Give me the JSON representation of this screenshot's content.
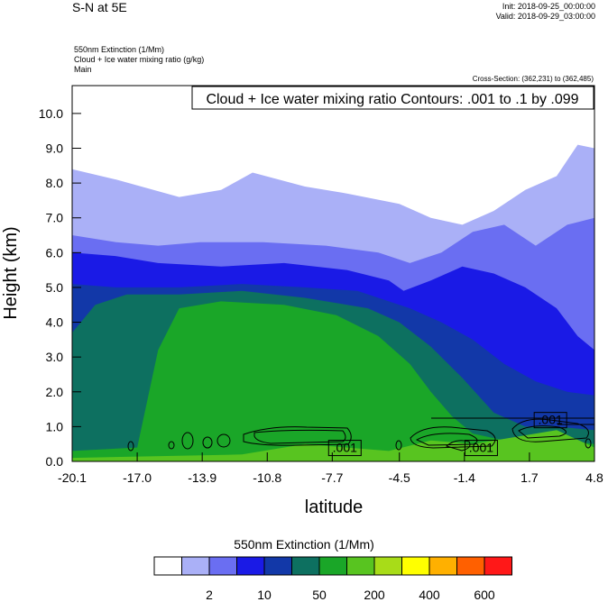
{
  "header": {
    "title": "S-N at 5E",
    "init": "Init: 2018-09-25_00:00:00",
    "valid": "Valid: 2018-09-29_03:00:00",
    "fields": [
      "550nm Extinction   (1/Mm)",
      "Cloud + Ice water mixing ratio   (g/kg)",
      "Main"
    ],
    "cross_section": "Cross-Section: (362,231) to (362,485)"
  },
  "chart_data": {
    "type": "heatmap",
    "title": "S-N at 5E",
    "xlabel": "latitude",
    "ylabel": "Height (km)",
    "xlim": [
      -20.1,
      4.8
    ],
    "ylim": [
      0.0,
      10.8
    ],
    "x_ticks": [
      -20.1,
      -17.0,
      -13.9,
      -10.8,
      -7.7,
      -4.5,
      -1.4,
      1.7,
      4.8
    ],
    "x_tick_labels": [
      "-20.1",
      "-17.0",
      "-13.9",
      "-10.8",
      "-7.7",
      "-4.5",
      "-1.4",
      "1.7",
      "4.8"
    ],
    "y_ticks": [
      0.0,
      1.0,
      2.0,
      3.0,
      4.0,
      5.0,
      6.0,
      7.0,
      8.0,
      9.0,
      10.0
    ],
    "y_tick_labels": [
      "0.0",
      "1.0",
      "2.0",
      "3.0",
      "4.0",
      "5.0",
      "6.0",
      "7.0",
      "8.0",
      "9.0",
      "10.0"
    ],
    "contour_info": "Cloud + Ice water mixing ratio Contours: .001 to .1 by .099",
    "contour_labels": [
      {
        "text": ".001",
        "lat": -7.1,
        "h": 0.4
      },
      {
        "text": ".001",
        "lat": -0.6,
        "h": 0.4
      },
      {
        "text": ".001",
        "lat": 2.7,
        "h": 1.2
      }
    ],
    "colorbar": {
      "title": "550nm Extinction  (1/Mm)",
      "colors": [
        "#ffffff",
        "#aab0f7",
        "#6a6ef2",
        "#1a1ae6",
        "#1238a8",
        "#0d7060",
        "#1aa628",
        "#58c420",
        "#a8dc18",
        "#ffff00",
        "#ffb000",
        "#ff6000",
        "#ff1818"
      ],
      "tick_labels": [
        "2",
        "10",
        "50",
        "200",
        "400",
        "600"
      ],
      "tick_label_boundaries": [
        2,
        4,
        6,
        8,
        10,
        12
      ]
    },
    "bands": [
      {
        "level": 1,
        "color": "#aab0f7",
        "top": [
          [
            -20.1,
            8.4
          ],
          [
            -18.0,
            8.1
          ],
          [
            -15.0,
            7.6
          ],
          [
            -13.0,
            7.8
          ],
          [
            -11.5,
            8.3
          ],
          [
            -9.0,
            7.9
          ],
          [
            -7.0,
            7.7
          ],
          [
            -4.5,
            7.4
          ],
          [
            -3.0,
            7.0
          ],
          [
            -1.5,
            6.8
          ],
          [
            0.0,
            7.2
          ],
          [
            1.5,
            7.8
          ],
          [
            3.0,
            8.2
          ],
          [
            4.0,
            9.1
          ],
          [
            4.8,
            9.0
          ]
        ]
      },
      {
        "level": 2,
        "color": "#6a6ef2",
        "top": [
          [
            -20.1,
            6.5
          ],
          [
            -18.0,
            6.3
          ],
          [
            -16.0,
            6.2
          ],
          [
            -14.0,
            6.3
          ],
          [
            -11.0,
            6.3
          ],
          [
            -8.0,
            6.2
          ],
          [
            -5.5,
            6.0
          ],
          [
            -4.0,
            5.7
          ],
          [
            -2.5,
            6.0
          ],
          [
            -1.0,
            6.6
          ],
          [
            0.5,
            6.8
          ],
          [
            2.0,
            6.2
          ],
          [
            3.5,
            6.8
          ],
          [
            4.8,
            7.0
          ]
        ]
      },
      {
        "level": 3,
        "color": "#1a1ae6",
        "top": [
          [
            -20.1,
            6.0
          ],
          [
            -18.0,
            5.9
          ],
          [
            -16.0,
            5.7
          ],
          [
            -13.0,
            5.6
          ],
          [
            -10.0,
            5.7
          ],
          [
            -7.0,
            5.5
          ],
          [
            -5.0,
            5.2
          ],
          [
            -4.3,
            4.9
          ],
          [
            -3.0,
            5.2
          ],
          [
            -1.5,
            5.6
          ],
          [
            0.0,
            5.4
          ],
          [
            1.5,
            5.0
          ],
          [
            3.0,
            4.4
          ],
          [
            4.0,
            3.6
          ],
          [
            4.8,
            3.2
          ]
        ]
      },
      {
        "level": 4,
        "color": "#1238a8",
        "top": [
          [
            -20.1,
            5.1
          ],
          [
            -18.0,
            5.0
          ],
          [
            -15.0,
            5.0
          ],
          [
            -12.0,
            5.1
          ],
          [
            -9.0,
            5.0
          ],
          [
            -6.5,
            4.9
          ],
          [
            -5.0,
            4.6
          ],
          [
            -4.0,
            4.4
          ],
          [
            -2.5,
            4.0
          ],
          [
            -1.0,
            3.5
          ],
          [
            0.5,
            2.8
          ],
          [
            2.0,
            2.3
          ],
          [
            3.5,
            2.0
          ],
          [
            4.8,
            1.9
          ]
        ]
      },
      {
        "level": 5,
        "color": "#0d7060",
        "top": [
          [
            -20.1,
            3.7
          ],
          [
            -19.0,
            4.5
          ],
          [
            -17.5,
            4.8
          ],
          [
            -15.0,
            4.8
          ],
          [
            -12.0,
            4.9
          ],
          [
            -9.0,
            4.7
          ],
          [
            -6.0,
            4.4
          ],
          [
            -4.5,
            4.0
          ],
          [
            -3.0,
            3.3
          ],
          [
            -1.5,
            2.4
          ],
          [
            0.0,
            1.4
          ],
          [
            1.5,
            1.0
          ],
          [
            3.0,
            1.0
          ],
          [
            4.8,
            0.9
          ]
        ]
      },
      {
        "level": 6,
        "color": "#1aa628",
        "top": [
          [
            -20.1,
            0.3
          ],
          [
            -17.0,
            0.4
          ],
          [
            -16.0,
            3.2
          ],
          [
            -15.0,
            4.4
          ],
          [
            -13.0,
            4.6
          ],
          [
            -10.0,
            4.5
          ],
          [
            -7.5,
            4.2
          ],
          [
            -5.5,
            3.6
          ],
          [
            -4.0,
            2.8
          ],
          [
            -3.0,
            2.0
          ],
          [
            -2.0,
            1.3
          ],
          [
            -1.0,
            0.8
          ],
          [
            0.5,
            0.6
          ],
          [
            2.0,
            0.7
          ],
          [
            3.5,
            0.6
          ],
          [
            4.8,
            0.5
          ]
        ]
      },
      {
        "level": 7,
        "color": "#58c420",
        "top": [
          [
            -20.1,
            0.1
          ],
          [
            -12.0,
            0.2
          ],
          [
            -9.0,
            0.5
          ],
          [
            -7.0,
            0.4
          ],
          [
            -5.0,
            0.3
          ],
          [
            -3.0,
            0.6
          ],
          [
            -1.0,
            0.5
          ],
          [
            1.0,
            0.7
          ],
          [
            3.0,
            0.9
          ],
          [
            4.8,
            0.4
          ]
        ]
      }
    ]
  }
}
